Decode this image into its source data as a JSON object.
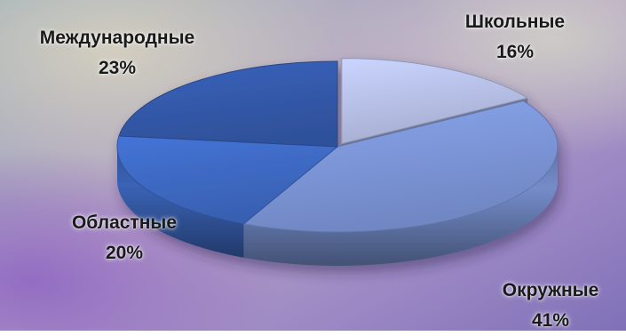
{
  "chart_data": {
    "type": "pie",
    "style": "3d-exploded",
    "title": "",
    "slices": [
      {
        "name": "Школьные",
        "value": 16,
        "label": "16%",
        "color": "#b4bde3"
      },
      {
        "name": "Окружные",
        "value": 41,
        "label": "41%",
        "color": "#7a93d4"
      },
      {
        "name": "Областные",
        "value": 20,
        "label": "20%",
        "color": "#3d68c0"
      },
      {
        "name": "Международные",
        "value": 23,
        "label": "23%",
        "color": "#3358a8"
      }
    ],
    "legend": "none",
    "data_labels": "outside"
  },
  "background": {
    "colors": [
      "#8fa6b9",
      "#b8a3c6",
      "#7b6eb6",
      "#d6d2c4"
    ]
  }
}
